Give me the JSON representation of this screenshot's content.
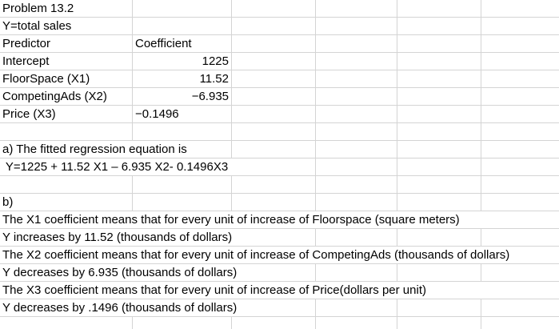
{
  "colors": {
    "gridline": "#d4d4d4",
    "background": "#ffffff",
    "text": "#000000"
  },
  "cells": {
    "problem_title": "Problem 13.2",
    "y_definition": "Y=total sales",
    "predictor_header": "Predictor",
    "coefficient_header": "Coefficient",
    "intercept_label": "Intercept",
    "intercept_value": "1225",
    "floorspace_label": "FloorSpace (X1)",
    "floorspace_value": "11.52",
    "competingads_label": "CompetingAds (X2)",
    "competingads_value": "−6.935",
    "price_label": "Price (X3)",
    "price_value": "−0.1496",
    "part_a_text": "a) The fitted regression equation is",
    "equation": " Y=1225 + 11.52 X1 – 6.935 X2- 0.1496X3",
    "part_b_label": "b)",
    "x1_explanation": "The X1 coefficient means that for every unit of increase of Floorspace (square meters)",
    "x1_effect": "Y increases by 11.52 (thousands of dollars)",
    "x2_explanation": "The X2 coefficient means that for every unit of increase of CompetingAds (thousands of dollars)",
    "x2_effect": "Y decreases by 6.935 (thousands of dollars)",
    "x3_explanation": "The X3 coefficient means that for every unit of increase of Price(dollars per unit)",
    "x3_effect": "Y decreases by .1496 (thousands of dollars)"
  }
}
